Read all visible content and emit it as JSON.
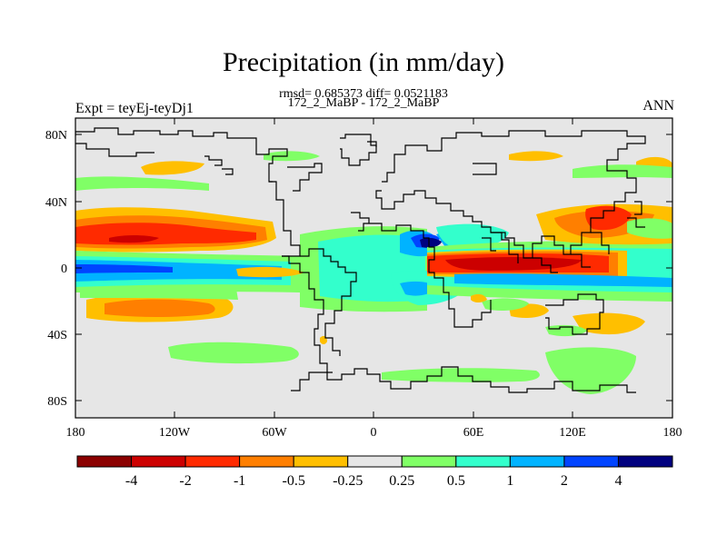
{
  "title": "Precipitation (in mm/day)",
  "stats": "rmsd= 0.685373 diff= 0.0521183",
  "cases": "172_2_MaBP - 172_2_MaBP",
  "expt": "Expt = teyEj-teyDj1",
  "season": "ANN",
  "axes": {
    "lat_ticks": [
      "80N",
      "40N",
      "0",
      "40S",
      "80S"
    ],
    "lon_ticks": [
      "180",
      "120W",
      "60W",
      "0",
      "60E",
      "120E",
      "180"
    ]
  },
  "colorbar": {
    "labels": [
      "-4",
      "-2",
      "-1",
      "-0.5",
      "-0.25",
      "0.25",
      "0.5",
      "1",
      "2",
      "4"
    ],
    "colors": [
      "#8b0000",
      "#cc0000",
      "#ff2a00",
      "#ff7f00",
      "#ffbf00",
      "#e6e6e6",
      "#80ff66",
      "#33ffcc",
      "#00b3ff",
      "#0044ff",
      "#00007f"
    ]
  },
  "map_colors": {
    "background": "#e6e6e6",
    "coast": "#000000"
  }
}
